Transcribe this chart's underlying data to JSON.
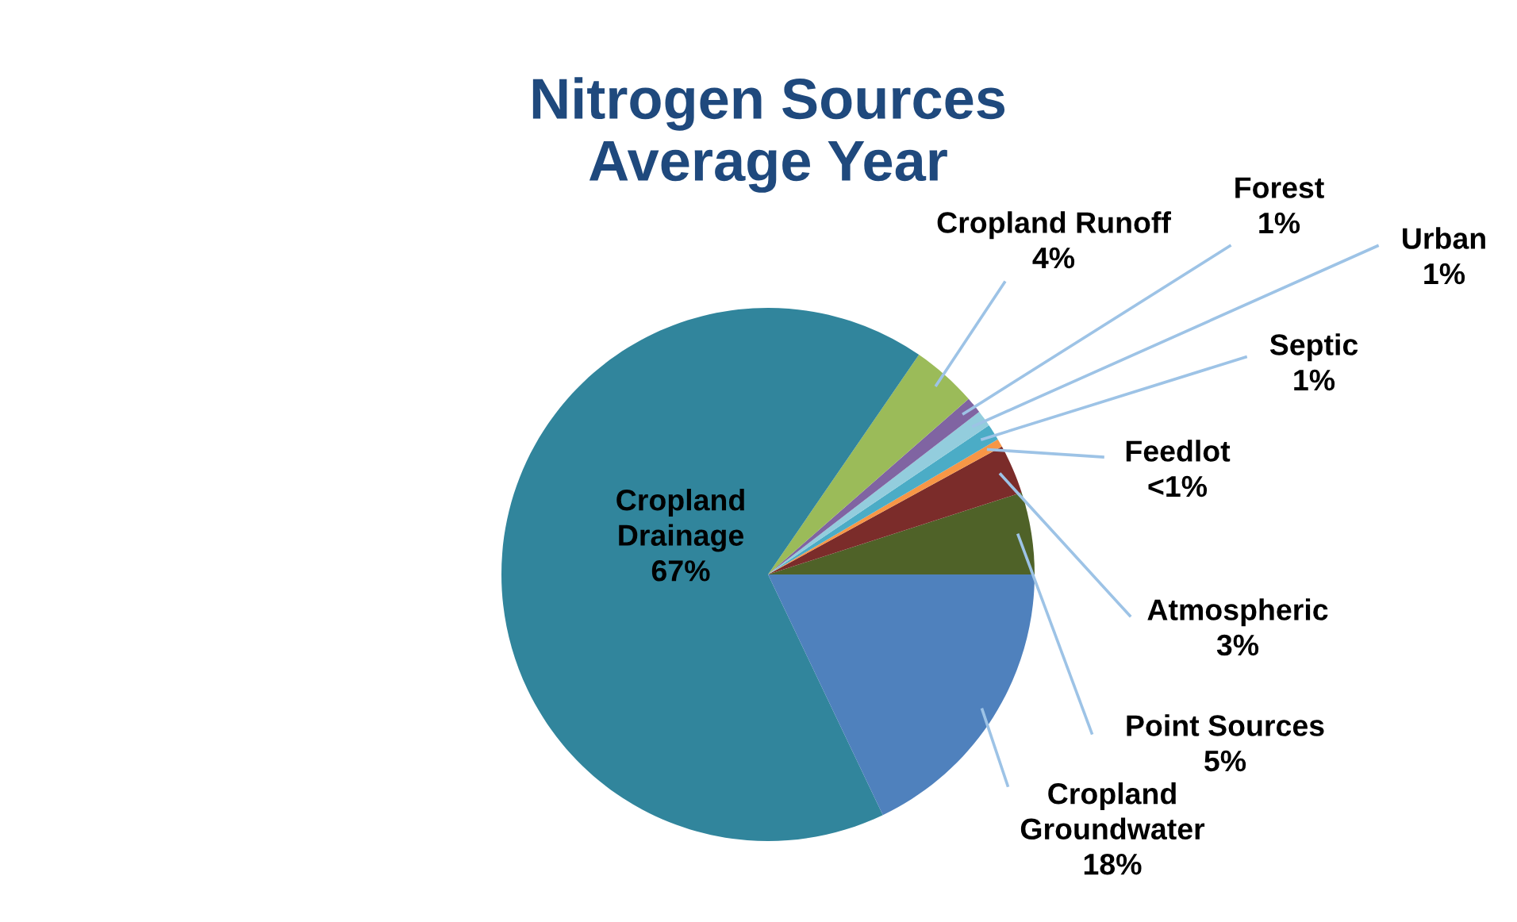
{
  "chart_data": {
    "type": "pie",
    "title": "Nitrogen Sources\nAverage Year",
    "categories": [
      "Point Sources",
      "Atmospheric",
      "Feedlot",
      "Septic",
      "Urban",
      "Forest",
      "Cropland Runoff",
      "Cropland\nDrainage",
      "Cropland\nGroundwater"
    ],
    "values": [
      5,
      3,
      0.5,
      1,
      1,
      1,
      4,
      67,
      18
    ],
    "value_labels": [
      "5%",
      "3%",
      "<1%",
      "1%",
      "1%",
      "1%",
      "4%",
      "67%",
      "18%"
    ],
    "colors": [
      "#4f6228",
      "#7b2c2a",
      "#f79646",
      "#4bacc6",
      "#93cddd",
      "#8064a2",
      "#9bbb59",
      "#31859c",
      "#4f81bd"
    ],
    "legend": false
  }
}
